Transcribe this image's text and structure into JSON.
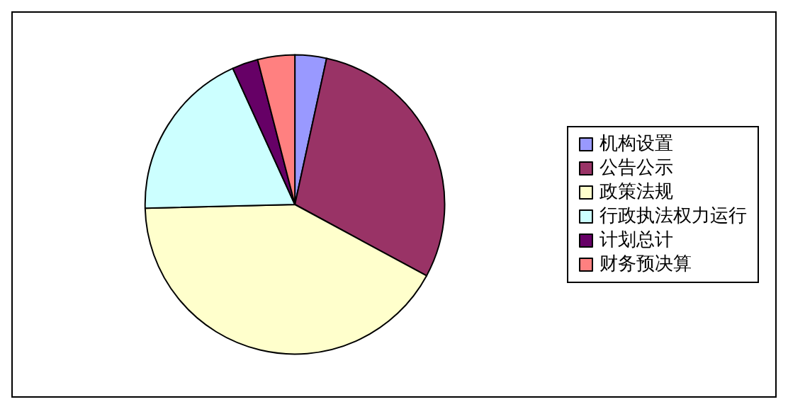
{
  "chart_data": {
    "type": "pie",
    "categories": [
      "机构设置",
      "公告公示",
      "政策法规",
      "行政执法权力运行",
      "计划总计",
      "财务预决算"
    ],
    "values": [
      3.4,
      29.5,
      41.7,
      18.6,
      2.8,
      4.0
    ],
    "colors": [
      "#9999ff",
      "#993366",
      "#ffffcc",
      "#ccffff",
      "#660066",
      "#ff8080"
    ],
    "legend": "right"
  }
}
